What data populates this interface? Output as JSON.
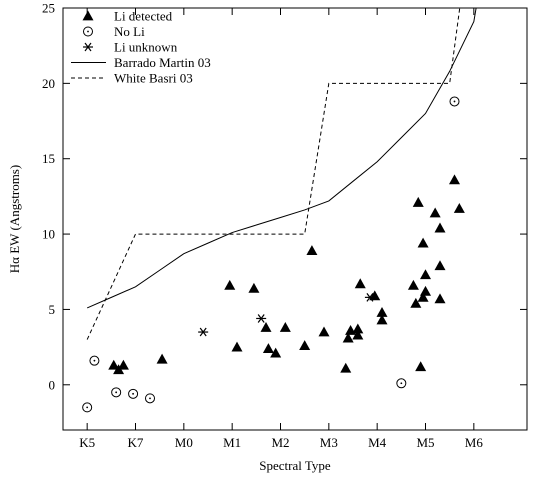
{
  "chart_data": {
    "type": "scatter",
    "xlabel": "Spectral Type",
    "ylabel": "Hα EW (Angstroms)",
    "xlim": [
      -0.5,
      9.1
    ],
    "ylim": [
      -3,
      25
    ],
    "x_ticks": [
      {
        "value": 0,
        "label": "K5"
      },
      {
        "value": 1,
        "label": "K7"
      },
      {
        "value": 2,
        "label": "M0"
      },
      {
        "value": 3,
        "label": "M1"
      },
      {
        "value": 4,
        "label": "M2"
      },
      {
        "value": 5,
        "label": "M3"
      },
      {
        "value": 6,
        "label": "M4"
      },
      {
        "value": 7,
        "label": "M5"
      },
      {
        "value": 8,
        "label": "M6"
      }
    ],
    "y_ticks": [
      0,
      5,
      10,
      15,
      20,
      25
    ],
    "legend_position": "top-left",
    "series": [
      {
        "name": "Li detected",
        "marker": "filled-triangle",
        "points": [
          [
            0.55,
            1.3
          ],
          [
            0.65,
            1.0
          ],
          [
            0.75,
            1.3
          ],
          [
            1.55,
            1.7
          ],
          [
            2.95,
            6.6
          ],
          [
            3.1,
            2.5
          ],
          [
            3.45,
            6.4
          ],
          [
            3.7,
            3.8
          ],
          [
            3.75,
            2.4
          ],
          [
            3.9,
            2.1
          ],
          [
            4.1,
            3.8
          ],
          [
            4.5,
            2.6
          ],
          [
            4.65,
            8.9
          ],
          [
            4.9,
            3.5
          ],
          [
            5.35,
            1.1
          ],
          [
            5.4,
            3.1
          ],
          [
            5.45,
            3.6
          ],
          [
            5.6,
            3.7
          ],
          [
            5.6,
            3.3
          ],
          [
            5.65,
            6.7
          ],
          [
            5.95,
            5.9
          ],
          [
            6.1,
            4.8
          ],
          [
            6.1,
            4.3
          ],
          [
            6.75,
            6.6
          ],
          [
            6.8,
            5.4
          ],
          [
            6.85,
            12.1
          ],
          [
            6.9,
            1.2
          ],
          [
            6.95,
            5.8
          ],
          [
            6.95,
            9.4
          ],
          [
            7.0,
            7.3
          ],
          [
            7.0,
            6.2
          ],
          [
            7.2,
            11.4
          ],
          [
            7.3,
            10.4
          ],
          [
            7.3,
            7.9
          ],
          [
            7.3,
            5.7
          ],
          [
            7.6,
            13.6
          ],
          [
            7.7,
            11.7
          ]
        ]
      },
      {
        "name": "No Li",
        "marker": "circle-dot",
        "points": [
          [
            0.0,
            -1.5
          ],
          [
            0.15,
            1.6
          ],
          [
            0.6,
            -0.5
          ],
          [
            0.95,
            -0.6
          ],
          [
            1.3,
            -0.9
          ],
          [
            6.5,
            0.1
          ],
          [
            7.6,
            18.8
          ]
        ]
      },
      {
        "name": "Li unknown",
        "marker": "asterisk",
        "points": [
          [
            2.4,
            3.5
          ],
          [
            3.6,
            4.4
          ],
          [
            5.85,
            5.8
          ]
        ]
      },
      {
        "name": "Barrado Martin 03",
        "line": "solid",
        "points": [
          [
            0.0,
            5.1
          ],
          [
            0.5,
            5.8
          ],
          [
            1.0,
            6.5
          ],
          [
            1.5,
            7.6
          ],
          [
            2.0,
            8.7
          ],
          [
            2.5,
            9.4
          ],
          [
            3.0,
            10.1
          ],
          [
            3.5,
            10.6
          ],
          [
            4.0,
            11.1
          ],
          [
            4.5,
            11.6
          ],
          [
            5.0,
            12.2
          ],
          [
            5.5,
            13.5
          ],
          [
            6.0,
            14.8
          ],
          [
            6.5,
            16.4
          ],
          [
            7.0,
            18.0
          ],
          [
            7.5,
            20.8
          ],
          [
            8.0,
            24.1
          ],
          [
            8.1,
            26.0
          ]
        ]
      },
      {
        "name": "White  Basri 03",
        "line": "dashed",
        "points": [
          [
            0.0,
            3.0
          ],
          [
            1.0,
            10.0
          ],
          [
            4.5,
            10.0
          ],
          [
            5.0,
            20.0
          ],
          [
            7.5,
            20.0
          ],
          [
            7.75,
            26.0
          ]
        ]
      }
    ]
  }
}
